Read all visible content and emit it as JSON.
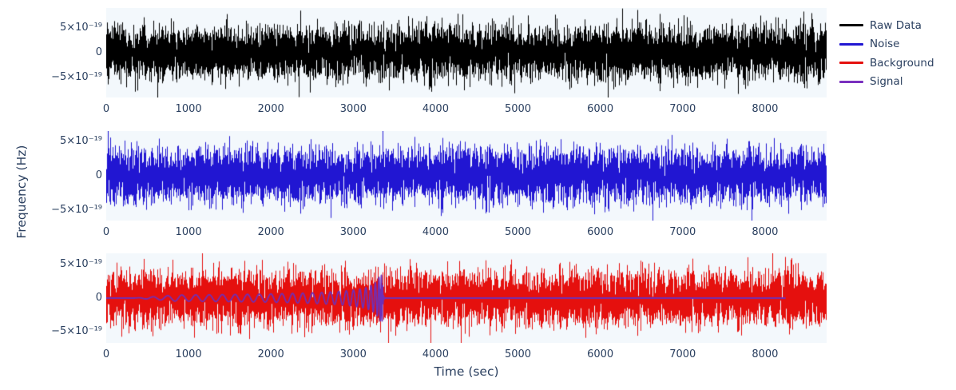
{
  "chart_data": {
    "type": "line",
    "title": "",
    "paper_bgcolor": "#ffffff",
    "plot_bgcolor": "#f3f8fc",
    "font_color": "#2a3f5f",
    "grid": "off",
    "legend_position": "top-right",
    "x": {
      "title": "Time (sec)",
      "range": [
        0,
        8748
      ],
      "tick_values": [
        0,
        1000,
        2000,
        3000,
        4000,
        5000,
        6000,
        7000,
        8000
      ],
      "tick_labels": [
        "0",
        "1000",
        "2000",
        "3000",
        "4000",
        "5000",
        "6000",
        "7000",
        "8000"
      ]
    },
    "y": {
      "title": "Frequency (Hz)",
      "tick_values_1e19": [
        5,
        0,
        -5
      ],
      "tick_labels": [
        "5×10⁻¹⁹",
        "0",
        "−5×10⁻¹⁹"
      ],
      "approx_range_1e19": [
        -9,
        9
      ]
    },
    "legend": [
      {
        "label": "Raw Data",
        "color": "#000000"
      },
      {
        "label": "Noise",
        "color": "#2116d2"
      },
      {
        "label": "Background",
        "color": "#e5100e"
      },
      {
        "label": "Signal",
        "color": "#7a30bf"
      }
    ],
    "subplots": [
      {
        "name": "raw-data",
        "series": [
          {
            "name": "Raw Data",
            "kind": "noise",
            "color": "#000000",
            "sigma_1e19": 2.6,
            "seed": 7,
            "t_start_sec": 0,
            "t_end_sec": 8748
          }
        ]
      },
      {
        "name": "noise",
        "series": [
          {
            "name": "Noise",
            "kind": "noise",
            "color": "#2116d2",
            "sigma_1e19": 1.9,
            "seed": 13,
            "t_start_sec": 0,
            "t_end_sec": 8748
          }
        ]
      },
      {
        "name": "background-and-signal",
        "series": [
          {
            "name": "Background",
            "kind": "noise",
            "color": "#e5100e",
            "sigma_1e19": 2.0,
            "seed": 29,
            "t_start_sec": 0,
            "t_end_sec": 8748
          },
          {
            "name": "Signal",
            "kind": "chirp",
            "color": "#6e2fb8",
            "flat_until_sec": 340,
            "merger_sec": 3352,
            "line_end_sec": 8250,
            "freq_coef": 0.109,
            "freq_exp": 0.375,
            "amp_base_1e19": 0.42,
            "amp_growth_exp": 0.5,
            "amp_max_1e19": 3.4,
            "ringdown_tau_sec": 7
          }
        ]
      }
    ],
    "duration_sec": 8748
  }
}
